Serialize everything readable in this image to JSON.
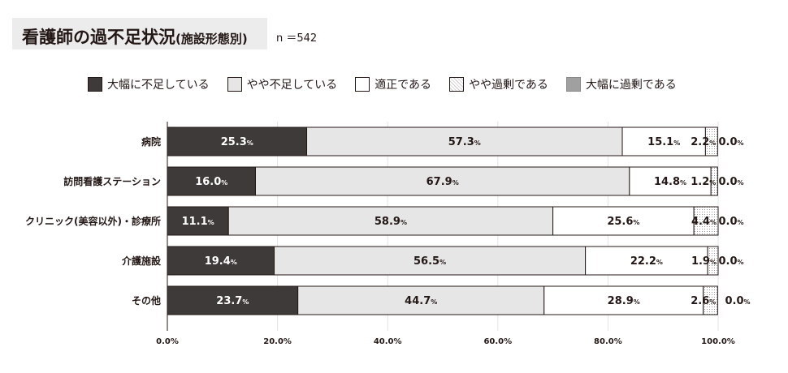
{
  "title": "看護師の過不足状況",
  "title_sub": "(施設形態別)",
  "n_label": "n ＝542",
  "chart_data": {
    "type": "bar",
    "orientation": "horizontal-stacked-100",
    "categories": [
      "病院",
      "訪問看護ステーション",
      "クリニック(美容以外)・診療所",
      "介護施設",
      "その他"
    ],
    "series": [
      {
        "name": "大幅に不足している",
        "color": "#3e3a39",
        "values": [
          25.3,
          16.0,
          11.1,
          19.4,
          23.7
        ]
      },
      {
        "name": "やや不足している",
        "color": "#e6e6e6",
        "values": [
          57.3,
          67.9,
          58.9,
          56.5,
          44.7
        ]
      },
      {
        "name": "適正である",
        "color": "#ffffff",
        "values": [
          15.1,
          14.8,
          25.6,
          22.2,
          28.9
        ]
      },
      {
        "name": "やや過剰である",
        "color": "dotted",
        "values": [
          2.2,
          1.2,
          4.4,
          1.9,
          2.6
        ]
      },
      {
        "name": "大幅に過剰である",
        "color": "#a0a0a0",
        "values": [
          0.0,
          0.0,
          0.0,
          0.0,
          0.0
        ]
      }
    ],
    "xlim": [
      0,
      100
    ],
    "xticks": [
      "0.0%",
      "20.0%",
      "40.0%",
      "60.0%",
      "80.0%",
      "100.0%"
    ],
    "value_suffix": "%",
    "grid": true,
    "legend": "top"
  }
}
